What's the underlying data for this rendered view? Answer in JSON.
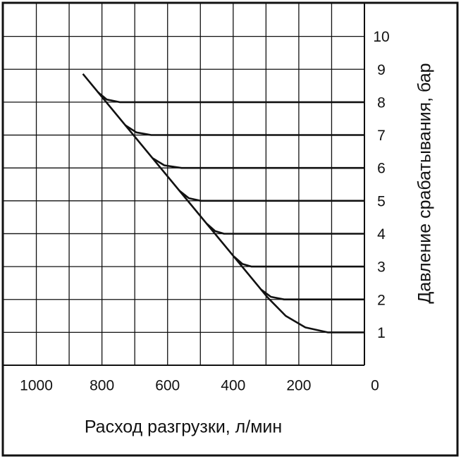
{
  "chart_data": {
    "type": "line",
    "xlabel": "Расход разгрузки, л/мин",
    "ylabel": "Давление срабатывания, бар",
    "xlim": [
      1100,
      0
    ],
    "xticks": [
      1000,
      800,
      600,
      400,
      200,
      0
    ],
    "xminor": [
      900,
      700,
      500,
      300,
      100
    ],
    "ylim": [
      0,
      11
    ],
    "yticks": [
      1,
      2,
      3,
      4,
      5,
      6,
      7,
      8,
      9,
      10
    ],
    "grid": true,
    "color": "#111111",
    "series": [
      {
        "x": [
          858,
          295,
          240,
          180,
          112,
          0
        ],
        "values": [
          8.86,
          2.06,
          1.5,
          1.15,
          1.0,
          1.0
        ]
      },
      {
        "x": [
          0,
          245,
          285,
          315
        ],
        "values": [
          2,
          2,
          2.08,
          2.3
        ]
      },
      {
        "x": [
          0,
          344,
          372,
          397
        ],
        "values": [
          3,
          3,
          3.08,
          3.3
        ]
      },
      {
        "x": [
          0,
          428,
          455,
          480
        ],
        "values": [
          4,
          4,
          4.08,
          4.3
        ]
      },
      {
        "x": [
          0,
          499,
          535,
          563
        ],
        "values": [
          5,
          5,
          5.08,
          5.3
        ]
      },
      {
        "x": [
          0,
          557,
          610,
          646
        ],
        "values": [
          6,
          6,
          6.08,
          6.3
        ]
      },
      {
        "x": [
          0,
          650,
          695,
          729
        ],
        "values": [
          7,
          7,
          7.08,
          7.3
        ]
      },
      {
        "x": [
          0,
          746,
          785,
          812
        ],
        "values": [
          8,
          8,
          8.08,
          8.3
        ]
      }
    ]
  }
}
